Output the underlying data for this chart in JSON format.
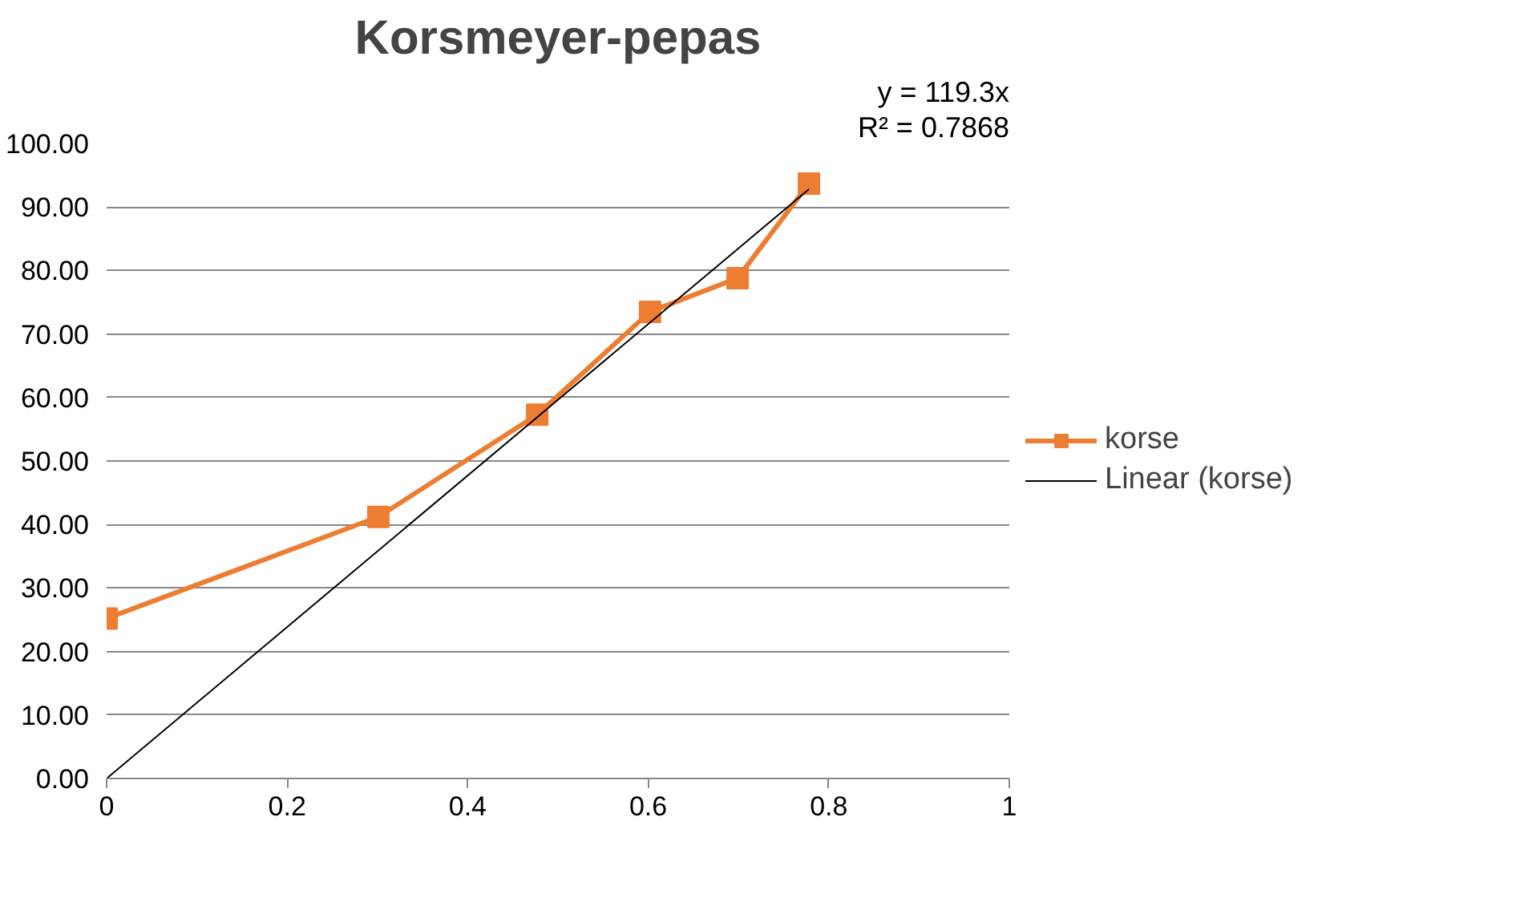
{
  "chart_data": {
    "type": "line",
    "title": "Korsmeyer-pepas",
    "xlim": [
      0,
      1
    ],
    "xticks": [
      0,
      0.2,
      0.4,
      0.6,
      0.8,
      1
    ],
    "ylim": [
      0,
      100
    ],
    "yticks": [
      {
        "value": 0,
        "label": "0.00"
      },
      {
        "value": 10,
        "label": "10.00"
      },
      {
        "value": 20,
        "label": "20.00"
      },
      {
        "value": 30,
        "label": "30.00"
      },
      {
        "value": 40,
        "label": "40.00"
      },
      {
        "value": 50,
        "label": "50.00"
      },
      {
        "value": 60,
        "label": "60.00"
      },
      {
        "value": 70,
        "label": "70.00"
      },
      {
        "value": 80,
        "label": "80.00"
      },
      {
        "value": 90,
        "label": "90.00"
      },
      {
        "value": 100,
        "label": "100.00"
      }
    ],
    "grid": "y",
    "legend": "right",
    "annotations": [
      "y = 119.3x",
      "R² = 0.7868"
    ],
    "series": [
      {
        "name": "korse",
        "color": "#ed7d31",
        "marker": "square",
        "x": [
          0,
          0.301,
          0.477,
          0.602,
          0.699,
          0.778
        ],
        "values": [
          25.2,
          41.2,
          57.3,
          73.5,
          78.8,
          93.7
        ]
      },
      {
        "name": "Linear (korse)",
        "color": "#000000",
        "marker": "none",
        "x": [
          0,
          0.778
        ],
        "values": [
          0,
          92.8
        ]
      }
    ]
  }
}
